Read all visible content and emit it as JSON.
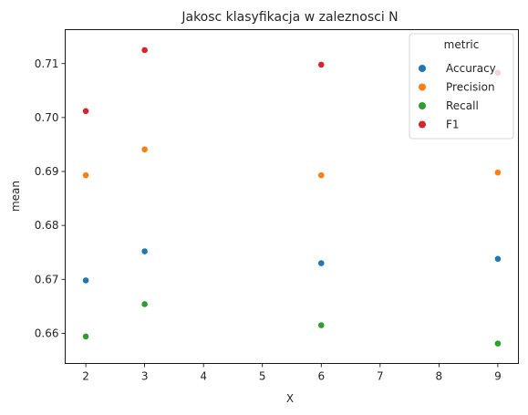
{
  "chart_data": {
    "type": "scatter",
    "title": "Jakosc klasyfikacja w zaleznosci N",
    "xlabel": "X",
    "ylabel": "mean",
    "xlim": [
      1.65,
      9.35
    ],
    "ylim": [
      0.6544,
      0.7163
    ],
    "x_ticks": [
      "2",
      "3",
      "4",
      "5",
      "6",
      "7",
      "8",
      "9"
    ],
    "y_ticks": [
      "0.66",
      "0.67",
      "0.68",
      "0.69",
      "0.70",
      "0.71"
    ],
    "x_tick_values": [
      2,
      3,
      4,
      5,
      6,
      7,
      8,
      9
    ],
    "y_tick_values": [
      0.66,
      0.67,
      0.68,
      0.69,
      0.7,
      0.71
    ],
    "grid": false,
    "legend_title": "metric",
    "legend_position": "top-right",
    "series": [
      {
        "name": "Accuracy",
        "color": "#1f77b4",
        "x": [
          2,
          3,
          6,
          9
        ],
        "y": [
          0.6698,
          0.6752,
          0.673,
          0.6738
        ]
      },
      {
        "name": "Precision",
        "color": "#ff7f0e",
        "x": [
          2,
          3,
          6,
          9
        ],
        "y": [
          0.6893,
          0.6941,
          0.6893,
          0.6898
        ]
      },
      {
        "name": "Recall",
        "color": "#2ca02c",
        "x": [
          2,
          3,
          6,
          9
        ],
        "y": [
          0.6594,
          0.6654,
          0.6615,
          0.6581
        ]
      },
      {
        "name": "F1",
        "color": "#d62728",
        "x": [
          2,
          3,
          6,
          9
        ],
        "y": [
          0.7012,
          0.7125,
          0.7098,
          0.7083
        ]
      }
    ]
  }
}
